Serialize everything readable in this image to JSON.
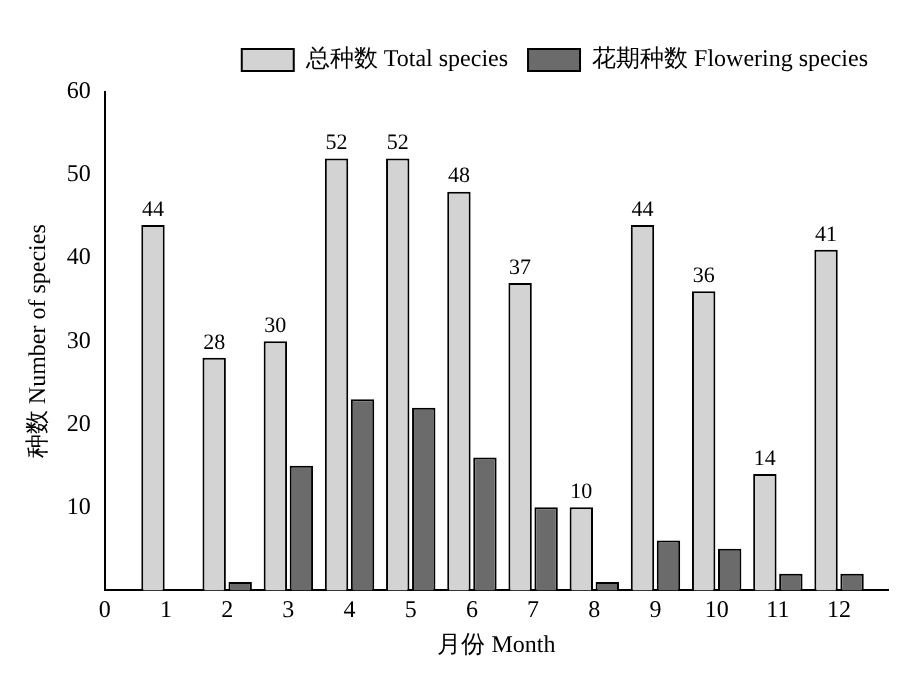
{
  "chart_data": {
    "type": "bar",
    "xlabel": "月份 Month",
    "ylabel": "种数 Number of species",
    "x": [
      1,
      2,
      3,
      4,
      5,
      6,
      7,
      8,
      9,
      10,
      11,
      12
    ],
    "xlim": [
      0,
      12.8
    ],
    "xticks": [
      0,
      1,
      2,
      3,
      4,
      5,
      6,
      7,
      8,
      9,
      10,
      11,
      12
    ],
    "series": [
      {
        "name": "总种数 Total species",
        "color": "#d3d3d3",
        "values": [
          44,
          28,
          30,
          52,
          52,
          48,
          37,
          10,
          44,
          36,
          14,
          41
        ],
        "value_labels": [
          "44",
          "28",
          "30",
          "52",
          "52",
          "48",
          "37",
          "10",
          "44",
          "36",
          "14",
          "41"
        ]
      },
      {
        "name": "花期种数 Flowering species",
        "color": "#6b6b6b",
        "values": [
          null,
          1,
          15,
          23,
          22,
          16,
          10,
          1,
          6,
          5,
          2,
          2
        ]
      }
    ],
    "ylim": [
      0,
      60
    ],
    "yticks": [
      10,
      20,
      30,
      40,
      50,
      60
    ],
    "grid": false,
    "legend": "top right"
  }
}
